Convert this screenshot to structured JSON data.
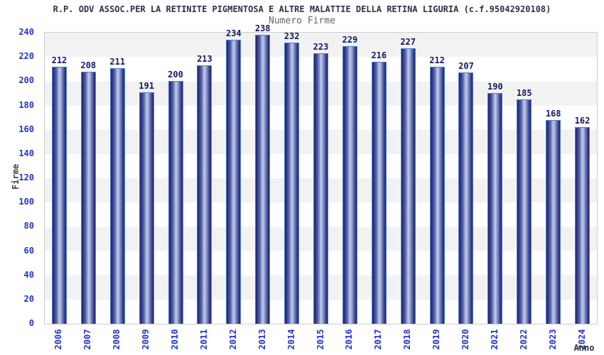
{
  "chart_data": {
    "type": "bar",
    "title": "R.P. ODV ASSOC.PER LA RETINITE PIGMENTOSA E ALTRE MALATTIE DELLA RETINA LIGURIA (c.f.95042920108)",
    "subtitle": "Numero Firme",
    "xlabel": "Anno",
    "ylabel": "Firme",
    "categories": [
      "2006",
      "2007",
      "2008",
      "2009",
      "2010",
      "2011",
      "2012",
      "2013",
      "2014",
      "2015",
      "2016",
      "2017",
      "2018",
      "2019",
      "2020",
      "2021",
      "2022",
      "2023",
      "2024"
    ],
    "values": [
      212,
      208,
      211,
      191,
      200,
      213,
      234,
      238,
      232,
      223,
      229,
      216,
      227,
      212,
      207,
      190,
      185,
      168,
      162
    ],
    "ylim": [
      0,
      240
    ],
    "ytick_step": 20,
    "grid": "alternating horizontal bands every 20 units",
    "legend": "none",
    "colors": {
      "band_light": "#ffffff",
      "band_gray": "#f2f2f2",
      "plot_border": "#cccccc",
      "bar_dark": "#23266f",
      "bar_light": "#c4cdec",
      "bar_outline": "#4d80d2",
      "tick_text": "#2233cc",
      "value_text": "#15156b",
      "title_text": "#30304a",
      "subtitle_text": "#666666",
      "axis_title_text": "#444444"
    }
  }
}
